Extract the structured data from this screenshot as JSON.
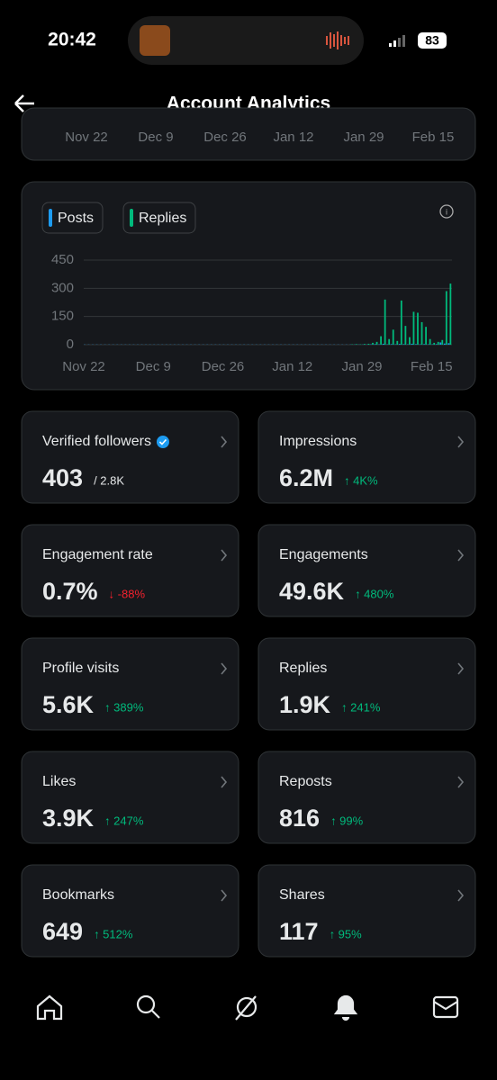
{
  "status_bar": {
    "time": "20:42",
    "battery": "83"
  },
  "header": {
    "title": "Account Analytics"
  },
  "previous_chart": {
    "x_labels": [
      "Nov 22",
      "Dec 9",
      "Dec 26",
      "Jan 12",
      "Jan 29",
      "Feb 15"
    ]
  },
  "chart": {
    "type": "bar",
    "ylim": [
      0,
      450
    ],
    "yticks": [
      0,
      150,
      300,
      450
    ],
    "grid": true,
    "categories": [
      "Nov 22",
      null,
      null,
      null,
      null,
      null,
      null,
      null,
      null,
      null,
      null,
      null,
      null,
      null,
      null,
      null,
      null,
      "Dec 9",
      null,
      null,
      null,
      null,
      null,
      null,
      null,
      null,
      null,
      null,
      null,
      null,
      null,
      null,
      null,
      null,
      "Dec 26",
      null,
      null,
      null,
      null,
      null,
      null,
      null,
      null,
      null,
      null,
      null,
      null,
      null,
      null,
      null,
      null,
      "Jan 12",
      null,
      null,
      null,
      null,
      null,
      null,
      null,
      null,
      null,
      null,
      null,
      null,
      null,
      null,
      null,
      null,
      "Jan 29",
      null,
      null,
      null,
      null,
      null,
      null,
      null,
      null,
      null,
      null,
      null,
      null,
      null,
      null,
      null,
      null,
      "Feb 15",
      null,
      null,
      null,
      null
    ],
    "series": [
      {
        "name": "Posts",
        "color": "#1d9bf0",
        "values": [
          1,
          1,
          1,
          1,
          1,
          1,
          1,
          1,
          1,
          1,
          1,
          1,
          1,
          1,
          1,
          1,
          1,
          1,
          1,
          1,
          1,
          1,
          1,
          1,
          1,
          1,
          1,
          1,
          1,
          1,
          1,
          1,
          1,
          1,
          1,
          1,
          1,
          1,
          1,
          1,
          1,
          1,
          1,
          1,
          1,
          1,
          1,
          1,
          1,
          1,
          1,
          1,
          1,
          1,
          1,
          1,
          1,
          1,
          1,
          1,
          1,
          1,
          1,
          1,
          1,
          1,
          1,
          1,
          1,
          1,
          2,
          3,
          2,
          5,
          2,
          3,
          2,
          4,
          3,
          2,
          5,
          3,
          2,
          3,
          2,
          2,
          3,
          12,
          6,
          8
        ]
      },
      {
        "name": "Replies",
        "color": "#00ba7c",
        "values": [
          0,
          0,
          0,
          0,
          0,
          0,
          0,
          0,
          0,
          0,
          0,
          0,
          0,
          0,
          0,
          0,
          0,
          0,
          0,
          0,
          0,
          0,
          0,
          0,
          0,
          0,
          0,
          0,
          0,
          0,
          0,
          0,
          0,
          0,
          0,
          0,
          0,
          0,
          0,
          0,
          0,
          0,
          0,
          0,
          0,
          0,
          0,
          0,
          0,
          0,
          0,
          0,
          0,
          0,
          0,
          0,
          0,
          0,
          0,
          0,
          0,
          0,
          0,
          0,
          0,
          2,
          3,
          2,
          4,
          5,
          10,
          15,
          45,
          240,
          30,
          80,
          20,
          235,
          100,
          40,
          175,
          170,
          120,
          95,
          30,
          10,
          15,
          25,
          285,
          325
        ]
      }
    ]
  },
  "cards": [
    {
      "label": "Verified followers",
      "value": "403",
      "sub": "/ 2.8K",
      "verified": true
    },
    {
      "label": "Impressions",
      "value": "6.2M",
      "change": "↑ 4K%",
      "direction": "up"
    },
    {
      "label": "Engagement rate",
      "value": "0.7%",
      "change": "↓ -88%",
      "direction": "down"
    },
    {
      "label": "Engagements",
      "value": "49.6K",
      "change": "↑ 480%",
      "direction": "up"
    },
    {
      "label": "Profile visits",
      "value": "5.6K",
      "change": "↑ 389%",
      "direction": "up"
    },
    {
      "label": "Replies",
      "value": "1.9K",
      "change": "↑ 241%",
      "direction": "up"
    },
    {
      "label": "Likes",
      "value": "3.9K",
      "change": "↑ 247%",
      "direction": "up"
    },
    {
      "label": "Reposts",
      "value": "816",
      "change": "↑ 99%",
      "direction": "up"
    },
    {
      "label": "Bookmarks",
      "value": "649",
      "change": "↑ 512%",
      "direction": "up"
    },
    {
      "label": "Shares",
      "value": "117",
      "change": "↑ 95%",
      "direction": "up"
    }
  ]
}
